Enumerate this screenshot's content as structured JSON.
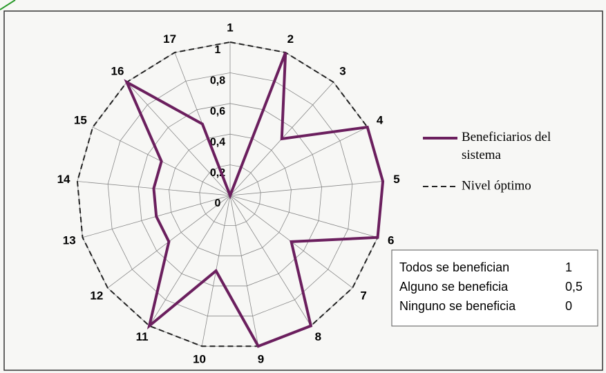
{
  "chart_data": {
    "type": "radar",
    "categories": [
      "1",
      "2",
      "3",
      "4",
      "5",
      "6",
      "7",
      "8",
      "9",
      "10",
      "11",
      "12",
      "13",
      "14",
      "15",
      "16",
      "17"
    ],
    "series": [
      {
        "name": "Beneficiarios del sistema",
        "color": "#6b1f5e",
        "style": "solid",
        "values": [
          0,
          1,
          0.5,
          1,
          1,
          1,
          0.5,
          1,
          1,
          0.5,
          1,
          0.5,
          0.5,
          0.5,
          0.5,
          1,
          0.5
        ]
      },
      {
        "name": "Nivel óptimo",
        "color": "#222222",
        "style": "dashed",
        "values": [
          1,
          1,
          1,
          1,
          1,
          1,
          1,
          1,
          1,
          1,
          1,
          1,
          1,
          1,
          1,
          1,
          1
        ]
      }
    ],
    "rlim": [
      0,
      1
    ],
    "rticks": [
      0,
      {
        "value": 0.2,
        "label": "0,2"
      },
      {
        "value": 0.4,
        "label": "0,4"
      },
      {
        "value": 0.6,
        "label": "0,6"
      },
      {
        "value": 0.8,
        "label": "0,8"
      },
      1
    ],
    "grid": true
  },
  "key": [
    {
      "label": "Todos se benefician",
      "value": "1"
    },
    {
      "label": "Alguno se beneficia",
      "value": "0,5"
    },
    {
      "label": "Ninguno se beneficia",
      "value": "0"
    }
  ]
}
